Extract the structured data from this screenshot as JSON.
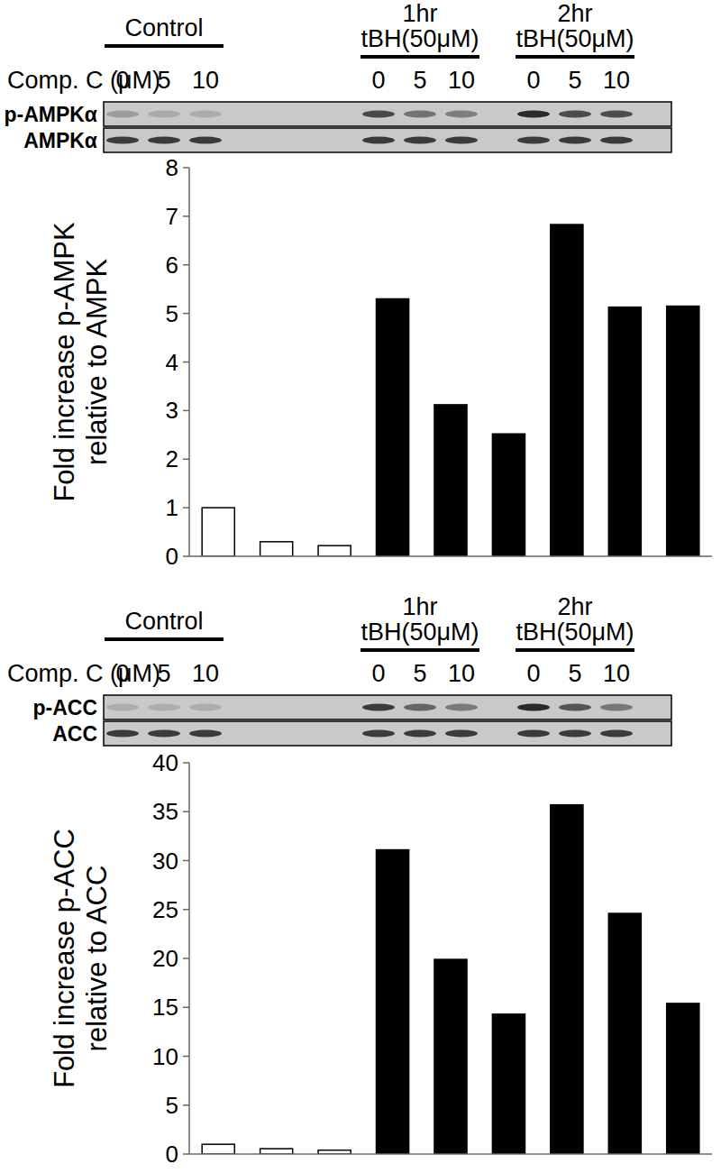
{
  "chart_data": [
    {
      "type": "bar",
      "groups": [
        {
          "label": [
            "Control"
          ]
        },
        {
          "label": [
            "1hr",
            "tBH(50μM)"
          ]
        },
        {
          "label": [
            "2hr",
            "tBH(50μM)"
          ]
        }
      ],
      "category_label": "Comp. C (μM)",
      "categories": [
        "0",
        "5",
        "10",
        "0",
        "5",
        "10",
        "0",
        "5",
        "10"
      ],
      "blot_labels": [
        "p-AMPKα",
        "AMPKα"
      ],
      "y_label": [
        "Fold increase p-AMPK",
        "relative to AMPK"
      ],
      "values": [
        1.0,
        0.3,
        0.22,
        5.3,
        3.12,
        2.52,
        6.83,
        5.13,
        5.15
      ],
      "colors": [
        "#ffffff",
        "#ffffff",
        "#ffffff",
        "#000000",
        "#000000",
        "#000000",
        "#000000",
        "#000000",
        "#000000"
      ],
      "ylim": [
        0,
        8
      ],
      "yticks": [
        0,
        1,
        2,
        3,
        4,
        5,
        6,
        7,
        8
      ],
      "tick_labels": "y",
      "grid": false
    },
    {
      "type": "bar",
      "groups": [
        {
          "label": [
            "Control"
          ]
        },
        {
          "label": [
            "1hr",
            "tBH(50μM)"
          ]
        },
        {
          "label": [
            "2hr",
            "tBH(50μM)"
          ]
        }
      ],
      "category_label": "Comp. C (μM)",
      "categories": [
        "0",
        "5",
        "10",
        "0",
        "5",
        "10",
        "0",
        "5",
        "10"
      ],
      "blot_labels": [
        "p-ACC",
        "ACC"
      ],
      "y_label": [
        "Fold increase p-ACC",
        "relative to ACC"
      ],
      "values": [
        1.0,
        0.55,
        0.4,
        31.1,
        19.9,
        14.3,
        35.7,
        24.6,
        15.4
      ],
      "colors": [
        "#ffffff",
        "#ffffff",
        "#ffffff",
        "#000000",
        "#000000",
        "#000000",
        "#000000",
        "#000000",
        "#000000"
      ],
      "ylim": [
        0,
        40
      ],
      "yticks": [
        0,
        5,
        10,
        15,
        20,
        25,
        30,
        35,
        40
      ],
      "tick_labels": "y",
      "grid": false
    }
  ]
}
